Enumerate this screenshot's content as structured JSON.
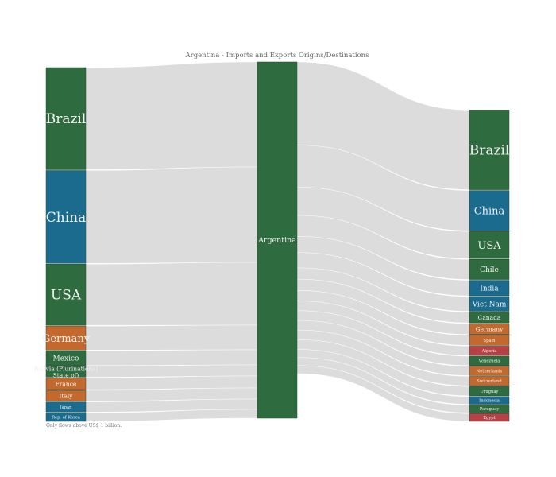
{
  "chart_data": {
    "type": "sankey",
    "title": "Argentina - Imports and Exports Origins/Destinations",
    "note": "Only flows above US$ 1 billion.",
    "colors": {
      "green": "#2e6b3f",
      "blue": "#1b6b8f",
      "orange": "#c4692e",
      "red": "#b84145",
      "flow": "#dcdcdc"
    },
    "center": {
      "label": "Argentina",
      "color": "green"
    },
    "origins": [
      {
        "label": "Brazil",
        "value": 13.2,
        "color": "green"
      },
      {
        "label": "China",
        "value": 12.0,
        "color": "blue"
      },
      {
        "label": "USA",
        "value": 7.9,
        "color": "green"
      },
      {
        "label": "Germany",
        "value": 3.1,
        "color": "orange"
      },
      {
        "label": "Mexico",
        "value": 1.9,
        "color": "green"
      },
      {
        "label": "Bolivia (Plurinational State of)",
        "value": 1.4,
        "color": "green"
      },
      {
        "label": "France",
        "value": 1.5,
        "color": "orange"
      },
      {
        "label": "Italy",
        "value": 1.4,
        "color": "orange"
      },
      {
        "label": "Japan",
        "value": 1.3,
        "color": "blue"
      },
      {
        "label": "Rep. of Korea",
        "value": 1.1,
        "color": "blue"
      }
    ],
    "destinations": [
      {
        "label": "Brazil",
        "value": 10.3,
        "color": "green"
      },
      {
        "label": "China",
        "value": 5.2,
        "color": "blue"
      },
      {
        "label": "USA",
        "value": 3.5,
        "color": "green"
      },
      {
        "label": "Chile",
        "value": 2.6,
        "color": "green"
      },
      {
        "label": "India",
        "value": 2.0,
        "color": "blue"
      },
      {
        "label": "Viet Nam",
        "value": 1.9,
        "color": "blue"
      },
      {
        "label": "Canada",
        "value": 1.4,
        "color": "green"
      },
      {
        "label": "Germany",
        "value": 1.4,
        "color": "orange"
      },
      {
        "label": "Spain",
        "value": 1.3,
        "color": "orange"
      },
      {
        "label": "Algeria",
        "value": 1.2,
        "color": "red"
      },
      {
        "label": "Venezuela",
        "value": 1.2,
        "color": "green"
      },
      {
        "label": "Netherlands",
        "value": 1.2,
        "color": "orange"
      },
      {
        "label": "Switzerland",
        "value": 1.2,
        "color": "orange"
      },
      {
        "label": "Uruguay",
        "value": 1.2,
        "color": "green"
      },
      {
        "label": "Indonesia",
        "value": 1.0,
        "color": "blue"
      },
      {
        "label": "Paraguay",
        "value": 1.0,
        "color": "green"
      },
      {
        "label": "Egypt",
        "value": 1.0,
        "color": "red"
      }
    ]
  }
}
